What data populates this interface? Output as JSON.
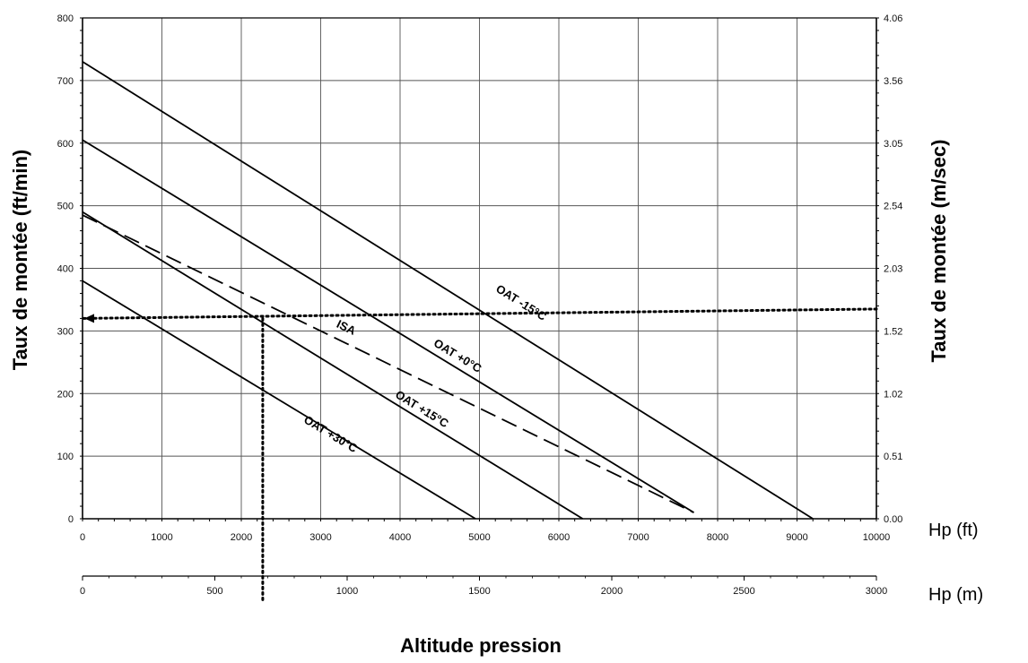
{
  "chart_data": {
    "type": "line",
    "xlabel": "Altitude pression",
    "ylabel": "Taux de montée (ft/min)",
    "y2label": "Taux de montée (m/sec)",
    "x_unit_label": "Hp (ft)",
    "x2_unit_label": "Hp (m)",
    "xlim": [
      0,
      10000
    ],
    "ylim": [
      0,
      800
    ],
    "grid": true,
    "x_ticks": [
      "0",
      "1000",
      "2000",
      "3000",
      "4000",
      "5000",
      "6000",
      "7000",
      "8000",
      "9000",
      "10000"
    ],
    "y_ticks": [
      "0",
      "100",
      "200",
      "300",
      "400",
      "500",
      "600",
      "700",
      "800"
    ],
    "y2_ticks": [
      "0.00",
      "0.51",
      "1.02",
      "1.52",
      "2.03",
      "2.54",
      "3.05",
      "3.56",
      "4.06"
    ],
    "x2_ticks": [
      "0",
      "500",
      "1000",
      "1500",
      "2000",
      "2500",
      "3000"
    ],
    "series": [
      {
        "name": "OAT -15°C",
        "style": "solid",
        "x": [
          0,
          9200
        ],
        "y": [
          730,
          0
        ]
      },
      {
        "name": "OAT +0°C",
        "style": "solid",
        "x": [
          0,
          7700
        ],
        "y": [
          605,
          10
        ]
      },
      {
        "name": "ISA",
        "style": "dashed",
        "x": [
          0,
          7700
        ],
        "y": [
          485,
          10
        ]
      },
      {
        "name": "OAT +15°C",
        "style": "solid",
        "x": [
          0,
          6300
        ],
        "y": [
          490,
          0
        ]
      },
      {
        "name": "OAT +30°C",
        "style": "solid",
        "x": [
          0,
          4950
        ],
        "y": [
          380,
          0
        ]
      }
    ],
    "annotation_lines": [
      {
        "style": "dotted",
        "x": [
          10000,
          0
        ],
        "y": [
          335,
          320
        ],
        "arrow_end": true
      },
      {
        "style": "dotted",
        "x": [
          2270,
          2270
        ],
        "y": [
          320,
          -130
        ]
      }
    ],
    "curve_labels": [
      {
        "text": "OAT -15°C",
        "x": 5500,
        "y": 340
      },
      {
        "text": "OAT +0°C",
        "x": 4700,
        "y": 255
      },
      {
        "text": "ISA",
        "x": 3300,
        "y": 300
      },
      {
        "text": "OAT +15°C",
        "x": 4250,
        "y": 170
      },
      {
        "text": "OAT +30°C",
        "x": 3100,
        "y": 130
      }
    ]
  }
}
